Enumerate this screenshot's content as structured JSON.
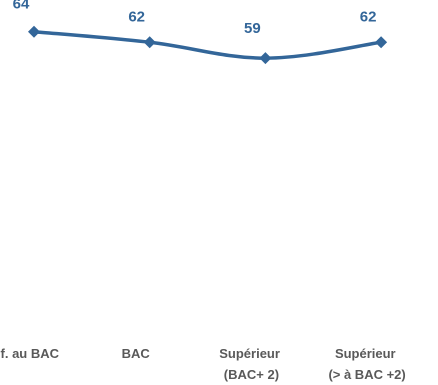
{
  "chart_data": {
    "type": "line",
    "title": "",
    "xlabel": "",
    "ylabel": "",
    "categories": [
      [
        "Inf. au BAC"
      ],
      [
        "BAC"
      ],
      [
        "Supérieur",
        "(BAC+ 2)"
      ],
      [
        "Supérieur",
        "(> à BAC +2)"
      ]
    ],
    "series": [
      {
        "values": [
          64,
          62,
          59,
          62
        ]
      }
    ],
    "data_labels": [
      "64",
      "62",
      "59",
      "62"
    ],
    "ylim": [
      0,
      70
    ],
    "grid": false,
    "legend": "none",
    "colors": {
      "line": "#336699",
      "marker": "#336699",
      "data_label": "#336699",
      "tick_label": "#595959"
    }
  }
}
